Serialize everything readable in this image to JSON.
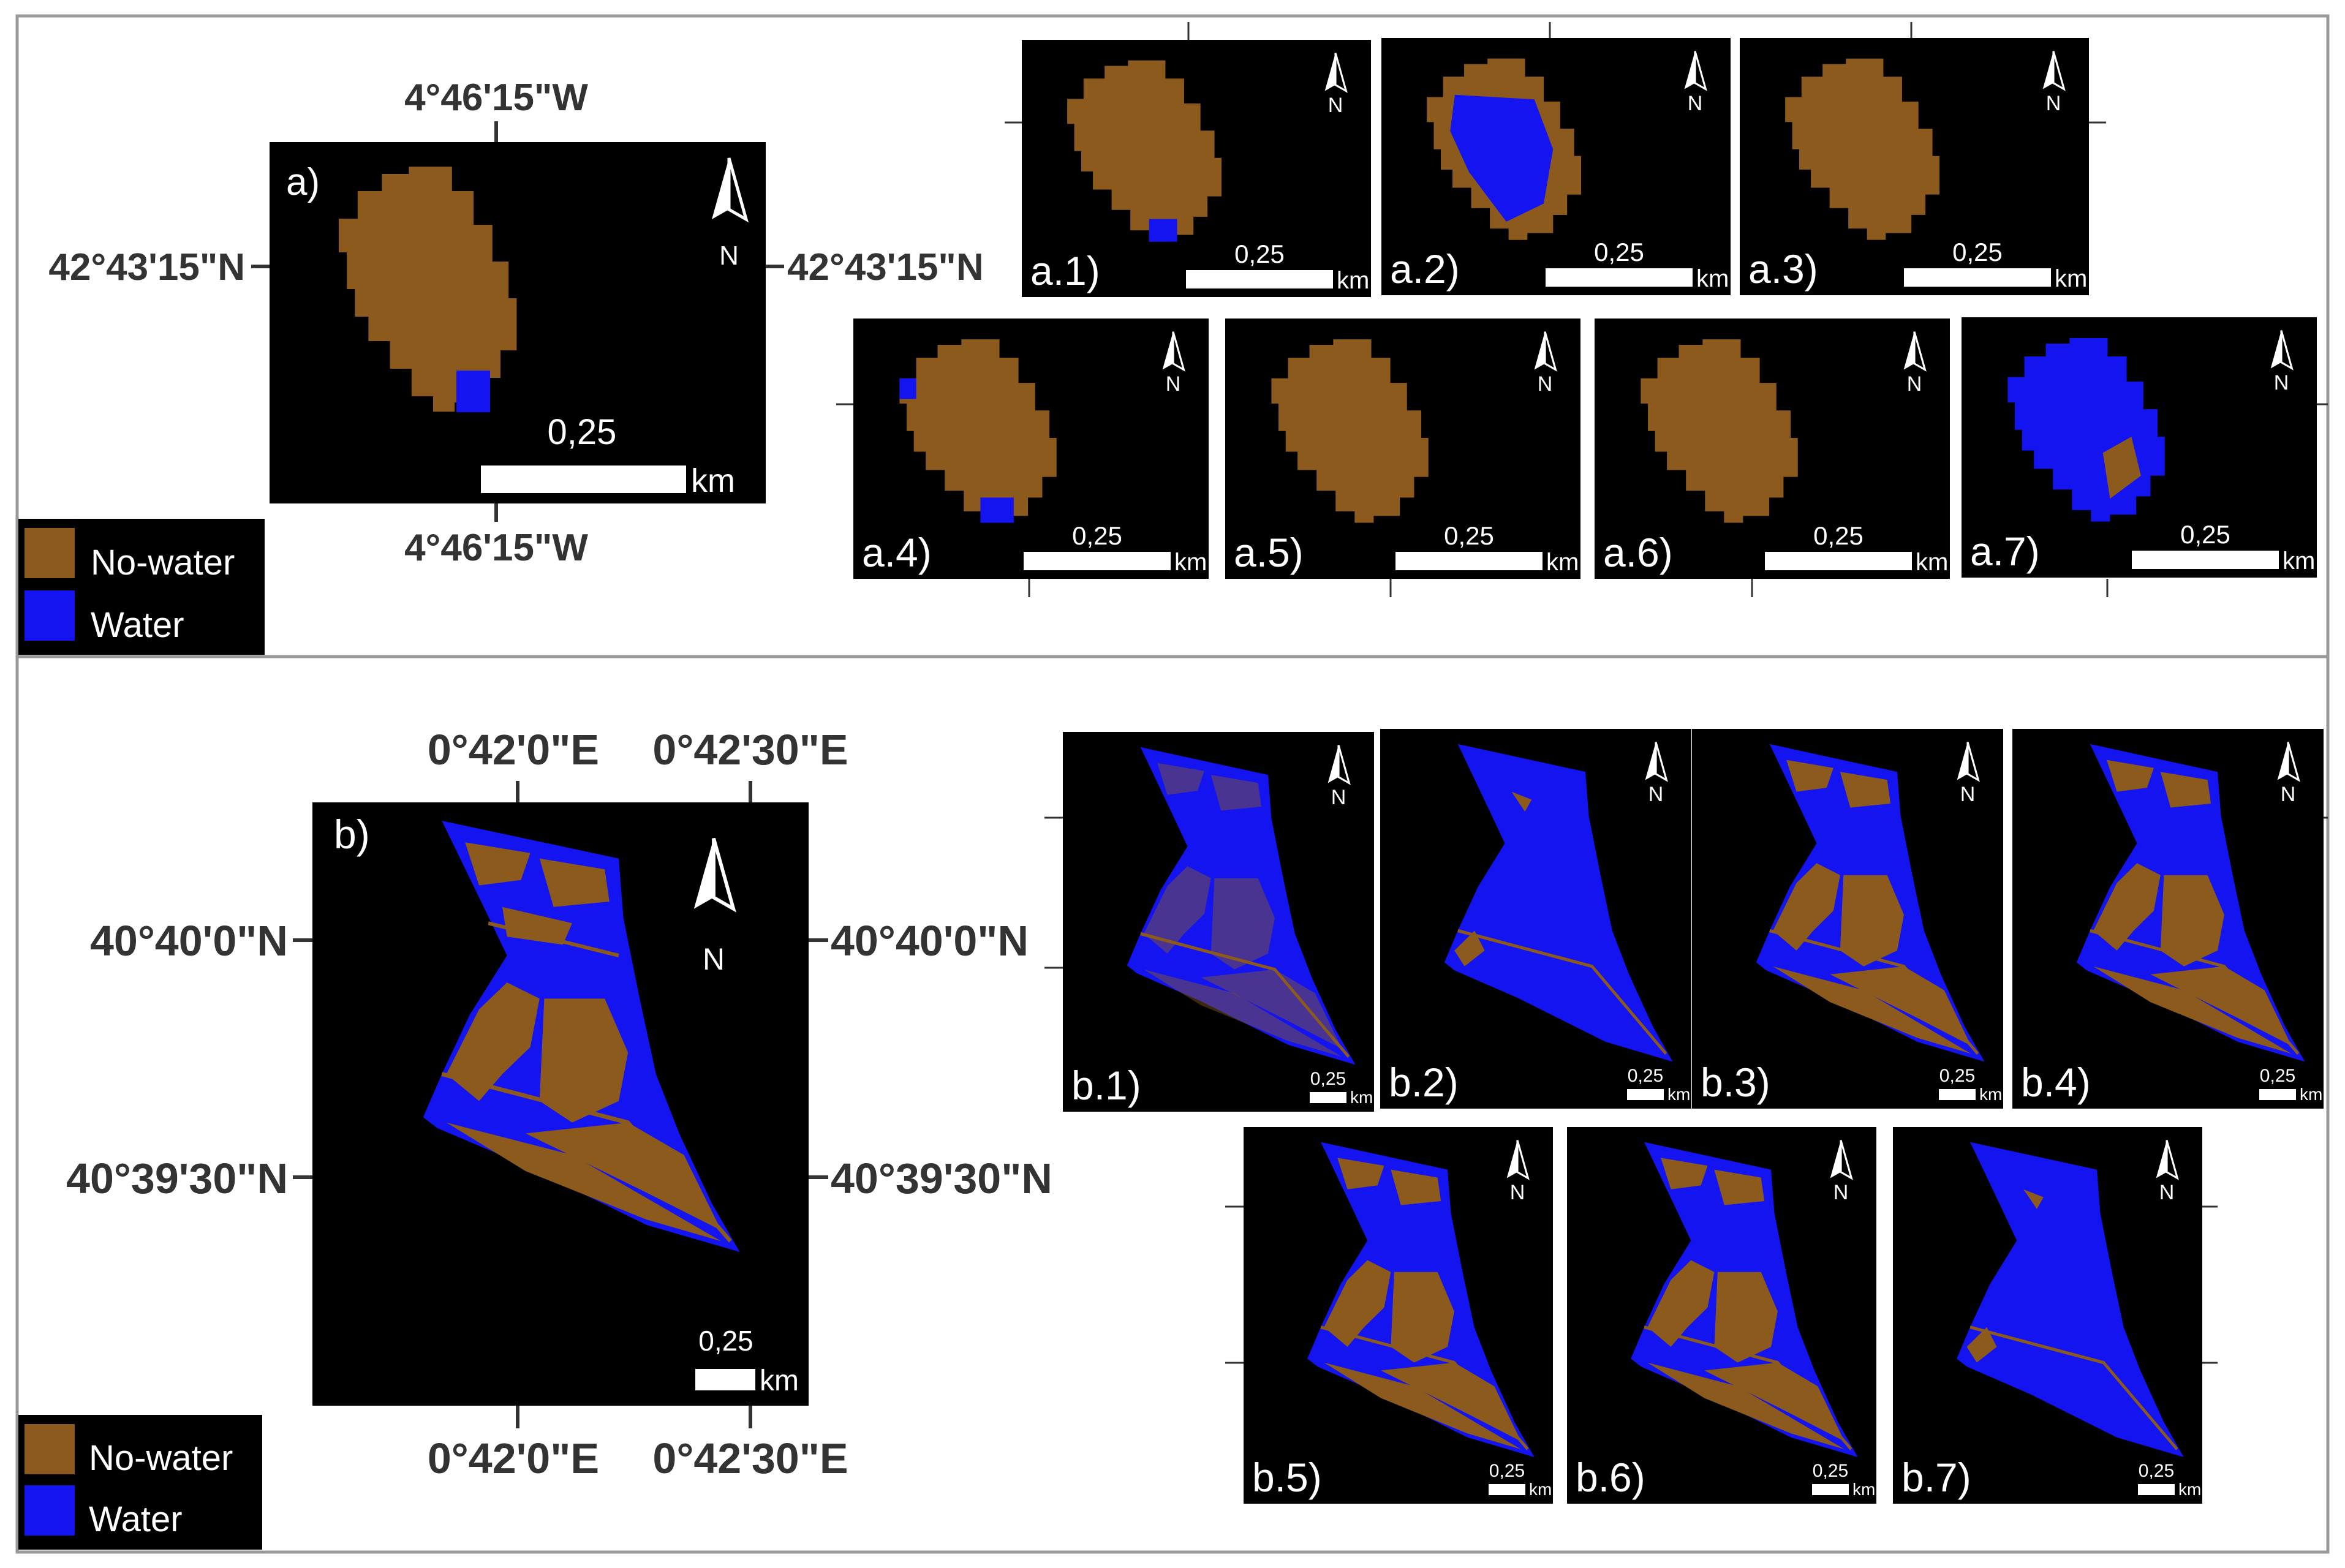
{
  "legend": {
    "no_water": "No-water",
    "water": "Water"
  },
  "colors": {
    "no_water": "#8B5A1C",
    "water": "#1414F0",
    "background": "#000000",
    "frame": "#999999",
    "text": "#333333"
  },
  "north_letter": "N",
  "scalebar": {
    "value": "0,25",
    "unit": "km"
  },
  "panel_a": {
    "label": "a)",
    "lon_top": "4°46'15\"W",
    "lon_bottom": "4°46'15\"W",
    "lat_left": "42°43'15\"N",
    "lat_right": "42°43'15\"N",
    "subpanels": [
      "a.1)",
      "a.2)",
      "a.3)",
      "a.4)",
      "a.5)",
      "a.6)",
      "a.7)"
    ]
  },
  "panel_b": {
    "label": "b)",
    "lon_top_1": "0°42'0\"E",
    "lon_top_2": "0°42'30\"E",
    "lon_bottom_1": "0°42'0\"E",
    "lon_bottom_2": "0°42'30\"E",
    "lat_top_left": "40°40'0\"N",
    "lat_top_right": "40°40'0\"N",
    "lat_bottom_left": "40°39'30\"N",
    "lat_bottom_right": "40°39'30\"N",
    "subpanels": [
      "b.1)",
      "b.2)",
      "b.3)",
      "b.4)",
      "b.5)",
      "b.6)",
      "b.7)"
    ]
  }
}
